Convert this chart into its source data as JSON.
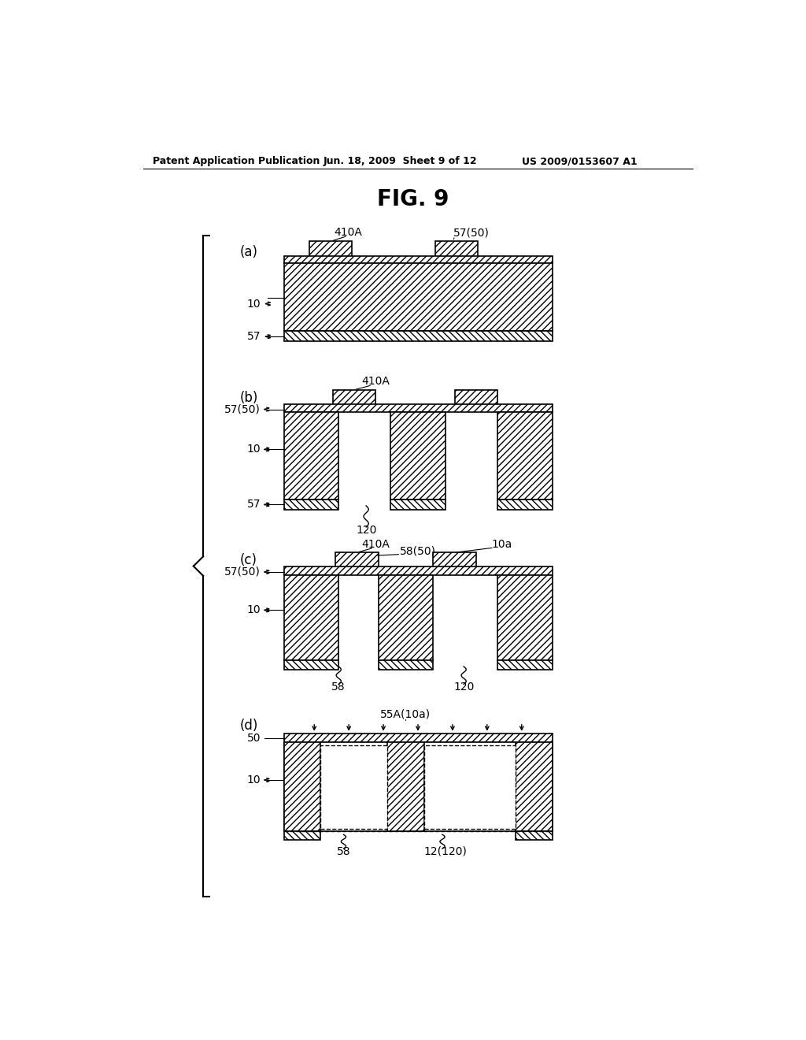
{
  "title": "FIG. 9",
  "header_left": "Patent Application Publication",
  "header_mid": "Jun. 18, 2009  Sheet 9 of 12",
  "header_right": "US 2009/0153607 A1",
  "bg_color": "#ffffff"
}
